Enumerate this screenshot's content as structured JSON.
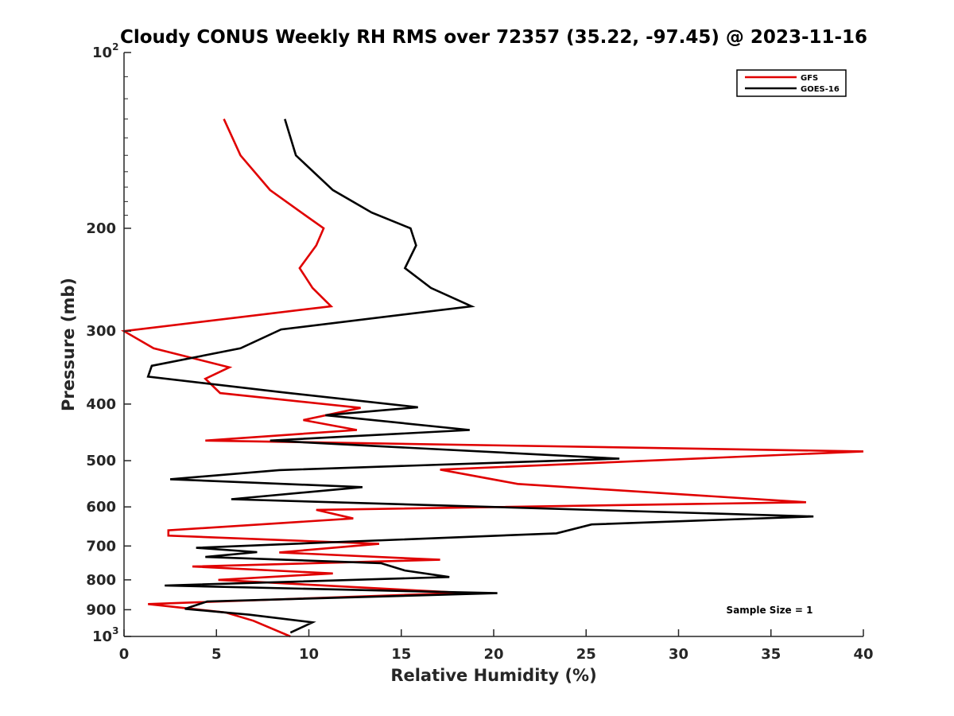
{
  "chart_data": {
    "type": "line",
    "title": "Cloudy CONUS Weekly RH RMS over 72357 (35.22, -97.45) @ 2023-11-16",
    "xlabel": "Relative Humidity (%)",
    "ylabel": "Pressure (mb)",
    "xlim": [
      0,
      40
    ],
    "ylim": [
      100,
      1000
    ],
    "y_scale": "log",
    "y_reversed": true,
    "grid": false,
    "legend_position": "top-right",
    "x_ticks": [
      "0",
      "5",
      "10",
      "15",
      "20",
      "25",
      "30",
      "35",
      "40"
    ],
    "y_ticks": [
      {
        "value": 100,
        "label": "10",
        "sup": "2"
      },
      {
        "value": 200,
        "label": "200"
      },
      {
        "value": 300,
        "label": "300"
      },
      {
        "value": 400,
        "label": "400"
      },
      {
        "value": 500,
        "label": "500"
      },
      {
        "value": 600,
        "label": "600"
      },
      {
        "value": 700,
        "label": "700"
      },
      {
        "value": 800,
        "label": "800"
      },
      {
        "value": 900,
        "label": "900"
      },
      {
        "value": 1000,
        "label": "10",
        "sup": "3"
      }
    ],
    "annotation": "Sample Size = 1",
    "series": [
      {
        "name": "GFS",
        "color": "#e00000",
        "x": [
          5.4,
          6.3,
          7.9,
          9.6,
          10.8,
          10.4,
          9.5,
          10.2,
          11.2,
          0.0,
          1.6,
          5.7,
          4.4,
          5.2,
          12.8,
          9.7,
          12.6,
          4.4,
          40.0,
          17.1,
          21.3,
          36.9,
          10.4,
          12.4,
          2.4,
          2.4,
          13.8,
          8.4,
          17.1,
          3.7,
          11.3,
          5.1,
          18.3,
          1.3,
          5.5,
          7.0,
          9.0
        ],
        "y": [
          130,
          150,
          172,
          188,
          200,
          214,
          234,
          253,
          272,
          300,
          321,
          346,
          362,
          383,
          406,
          426,
          443,
          462,
          482,
          518,
          548,
          589,
          607,
          628,
          658,
          672,
          694,
          718,
          739,
          759,
          780,
          800,
          842,
          880,
          910,
          940,
          1000
        ]
      },
      {
        "name": "GOES-16",
        "color": "#000000",
        "x": [
          8.7,
          9.3,
          11.3,
          13.4,
          15.5,
          15.8,
          15.2,
          16.6,
          18.8,
          8.5,
          6.3,
          1.5,
          1.3,
          8.6,
          15.9,
          10.9,
          18.7,
          7.9,
          26.8,
          8.4,
          2.5,
          12.9,
          5.8,
          37.3,
          25.3,
          23.4,
          10.2,
          3.9,
          7.2,
          4.4,
          13.9,
          15.2,
          17.6,
          2.2,
          20.2,
          4.5,
          3.3,
          6.8,
          10.2,
          9.0
        ],
        "y": [
          130,
          150,
          172,
          188,
          200,
          214,
          234,
          253,
          272,
          298,
          321,
          344,
          359,
          382,
          405,
          418,
          443,
          462,
          496,
          519,
          538,
          555,
          582,
          623,
          643,
          666,
          692,
          705,
          717,
          731,
          749,
          771,
          791,
          818,
          843,
          871,
          897,
          918,
          946,
          985
        ]
      }
    ]
  }
}
